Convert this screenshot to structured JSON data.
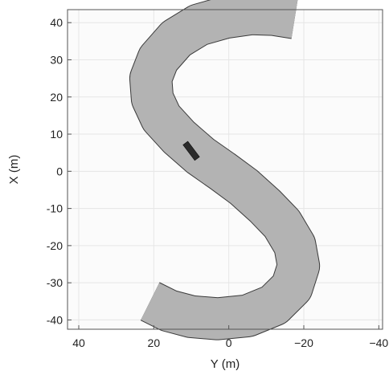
{
  "chart_data": {
    "type": "plot",
    "title": "",
    "xlabel": "Y (m)",
    "ylabel": "X (m)",
    "x_axis": {
      "ticks": [
        40,
        20,
        0,
        -20,
        -40
      ],
      "tick_labels": [
        "40",
        "20",
        "0",
        "−20",
        "−40"
      ],
      "range": [
        43,
        -41
      ],
      "direction": "decreasing-left-to-right"
    },
    "y_axis": {
      "ticks": [
        40,
        30,
        20,
        10,
        0,
        -10,
        -20,
        -30,
        -40
      ],
      "tick_labels": [
        "40",
        "30",
        "20",
        "10",
        "0",
        "-10",
        "-20",
        "-30",
        "-40"
      ],
      "range": [
        -42.5,
        43.5
      ]
    },
    "grid": true,
    "road": {
      "shape": "S-curve",
      "centerline": [
        {
          "y": -17.6,
          "x": 41.3
        },
        {
          "y": -12.0,
          "x": 42.2
        },
        {
          "y": -6.0,
          "x": 42.4
        },
        {
          "y": 1.0,
          "x": 41.4
        },
        {
          "y": 8.0,
          "x": 39.4
        },
        {
          "y": 14.0,
          "x": 35.7
        },
        {
          "y": 18.8,
          "x": 30.2
        },
        {
          "y": 20.8,
          "x": 25.0
        },
        {
          "y": 20.4,
          "x": 19.6
        },
        {
          "y": 18.0,
          "x": 14.4
        },
        {
          "y": 13.3,
          "x": 9.2
        },
        {
          "y": 7.6,
          "x": 4.2
        },
        {
          "y": 1.8,
          "x": 0.1
        },
        {
          "y": -4.0,
          "x": -4.2
        },
        {
          "y": -9.6,
          "x": -9.3
        },
        {
          "y": -14.2,
          "x": -14.1
        },
        {
          "y": -17.6,
          "x": -19.9
        },
        {
          "y": -18.6,
          "x": -25.5
        },
        {
          "y": -16.8,
          "x": -31.2
        },
        {
          "y": -12.0,
          "x": -36.0
        },
        {
          "y": -5.0,
          "x": -38.9
        },
        {
          "y": 3.0,
          "x": -39.7
        },
        {
          "y": 10.0,
          "x": -39.1
        },
        {
          "y": 16.0,
          "x": -37.5
        },
        {
          "y": 21.0,
          "x": -35.0
        }
      ],
      "width_m": 11,
      "fill": "#b3b3b3",
      "edge_color": "#3a3a3a"
    },
    "vehicle": {
      "y": 10.0,
      "x": 5.5,
      "heading_deg": -53,
      "length_m": 5.2,
      "width_m": 1.6,
      "color": "#2b2b2b"
    }
  }
}
